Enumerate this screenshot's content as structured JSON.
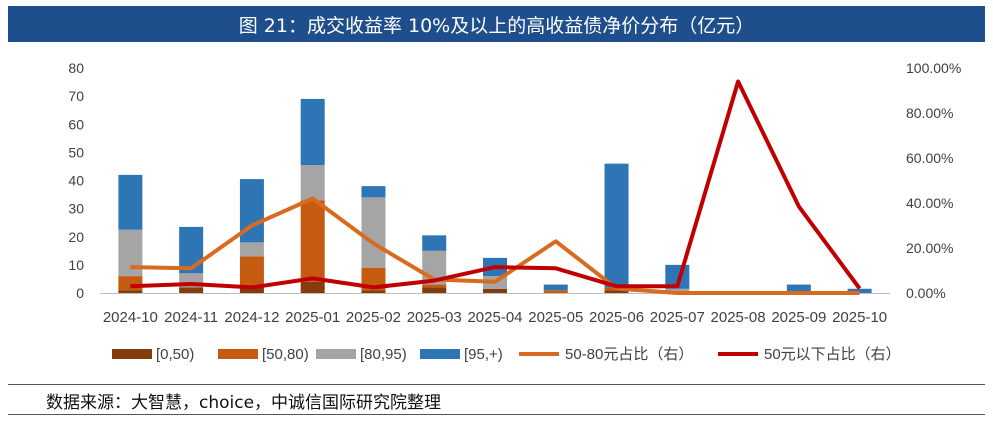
{
  "title": "图 21：成交收益率 10%及以上的高收益债净价分布（亿元）",
  "source": "数据来源：大智慧，choice，中诚信国际研究院整理",
  "chart_data": {
    "type": "bar",
    "stacked": true,
    "categories": [
      "2024-10",
      "2024-11",
      "2024-12",
      "2025-01",
      "2025-02",
      "2025-03",
      "2025-04",
      "2025-05",
      "2025-06",
      "2025-07",
      "2025-08",
      "2025-09",
      "2025-10"
    ],
    "series": [
      {
        "name": "[0,50)",
        "color": "#843c0c",
        "values": [
          1,
          2,
          2,
          4,
          1,
          2,
          1.5,
          0,
          1,
          0,
          0,
          0,
          0
        ]
      },
      {
        "name": "[50,80)",
        "color": "#c55a11",
        "values": [
          5,
          0,
          11,
          29,
          8,
          1,
          0,
          1,
          1,
          0.5,
          0,
          0,
          0
        ]
      },
      {
        "name": "[80,95)",
        "color": "#a5a5a5",
        "values": [
          16.5,
          5,
          5,
          12.5,
          25,
          12,
          4.5,
          0,
          0,
          1,
          0,
          0.5,
          0
        ]
      },
      {
        "name": "[95,+)",
        "color": "#2e75b6",
        "values": [
          19.5,
          16.5,
          22.5,
          23.5,
          4,
          5.5,
          6.5,
          2,
          44,
          8.5,
          0,
          2.5,
          1.5
        ]
      }
    ],
    "line_series": [
      {
        "name": "50-80元占比（右）",
        "color": "#d86b1f",
        "values": [
          11.5,
          11,
          30,
          42,
          22,
          6,
          5,
          23,
          2,
          0,
          0,
          0,
          0
        ]
      },
      {
        "name": "50元以下占比（右）",
        "color": "#c00000",
        "values": [
          3,
          4,
          2.5,
          6.5,
          2.5,
          5.5,
          11.5,
          11,
          3,
          3,
          94,
          38.5,
          2
        ]
      }
    ],
    "ylim": [
      0,
      80
    ],
    "yticks": [
      "0",
      "10",
      "20",
      "30",
      "40",
      "50",
      "60",
      "70",
      "80"
    ],
    "y2lim": [
      0,
      100
    ],
    "y2ticks": [
      "0.00%",
      "20.00%",
      "40.00%",
      "60.00%",
      "80.00%",
      "100.00%"
    ],
    "grid": false,
    "legend_position": "bottom"
  }
}
